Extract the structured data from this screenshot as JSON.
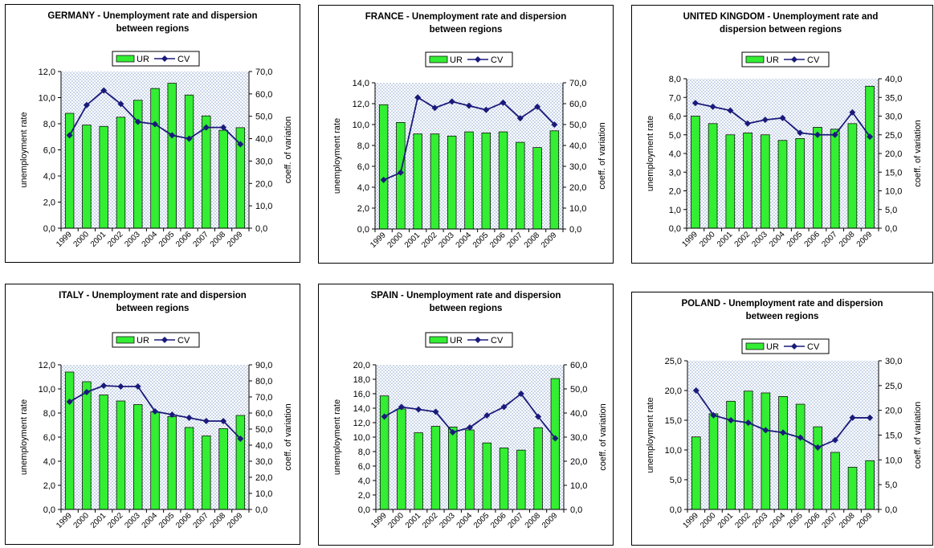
{
  "legend": {
    "bar_label": "UR",
    "line_label": "CV"
  },
  "colors": {
    "bar": "#33ee33",
    "bar_edge": "#111111",
    "line": "#1a1a7a",
    "plot_bg": "#dde6f2"
  },
  "chart_data": [
    {
      "type": "bar+line",
      "title_lines": [
        "GERMANY - Unemployment rate and dispersion",
        "between regions"
      ],
      "ylabel": "unemployment rate",
      "y2label": "coeff. of variation",
      "categories": [
        "1999",
        "2000",
        "2001",
        "2002",
        "2003",
        "2004",
        "2005",
        "2006",
        "2007",
        "2008",
        "2009"
      ],
      "series": [
        {
          "name": "UR",
          "axis": "left",
          "values": [
            8.8,
            7.9,
            7.8,
            8.5,
            9.8,
            10.7,
            11.1,
            10.2,
            8.6,
            7.5,
            7.7
          ]
        },
        {
          "name": "CV",
          "axis": "right",
          "values": [
            41.5,
            55.0,
            61.5,
            55.5,
            47.5,
            46.5,
            41.5,
            40.0,
            45.0,
            45.0,
            37.5
          ]
        }
      ],
      "ylim": [
        0,
        12
      ],
      "yticks": [
        "0,0",
        "2,0",
        "4,0",
        "6,0",
        "8,0",
        "10,0",
        "12,0"
      ],
      "y2lim": [
        0,
        70
      ],
      "y2ticks": [
        "0,0",
        "10,0",
        "20,0",
        "30,0",
        "40,0",
        "50,0",
        "60,0",
        "70,0"
      ]
    },
    {
      "type": "bar+line",
      "title_lines": [
        "FRANCE - Unemployment rate and dispersion",
        "between regions"
      ],
      "ylabel": "unemployment rate",
      "y2label": "coeff. of variation",
      "categories": [
        "1999",
        "2000",
        "2001",
        "2002",
        "2003",
        "2004",
        "2005",
        "2006",
        "2007",
        "2008",
        "2009"
      ],
      "series": [
        {
          "name": "UR",
          "axis": "left",
          "values": [
            11.9,
            10.2,
            9.1,
            9.1,
            8.9,
            9.3,
            9.2,
            9.3,
            8.3,
            7.8,
            9.4
          ]
        },
        {
          "name": "CV",
          "axis": "right",
          "values": [
            23.5,
            27.0,
            63.0,
            58.0,
            61.0,
            59.0,
            57.0,
            60.5,
            53.0,
            58.5,
            50.0
          ]
        }
      ],
      "ylim": [
        0,
        14
      ],
      "yticks": [
        "0,0",
        "2,0",
        "4,0",
        "6,0",
        "8,0",
        "10,0",
        "12,0",
        "14,0"
      ],
      "y2lim": [
        0,
        70
      ],
      "y2ticks": [
        "0,0",
        "10,0",
        "20,0",
        "30,0",
        "40,0",
        "50,0",
        "60,0",
        "70,0"
      ]
    },
    {
      "type": "bar+line",
      "title_lines": [
        "UNITED KINGDOM - Unemployment rate and",
        "dispersion between regions"
      ],
      "ylabel": "unemployment rate",
      "y2label": "coeff. of variation",
      "categories": [
        "1999",
        "2000",
        "2001",
        "2002",
        "2003",
        "2004",
        "2005",
        "2006",
        "2007",
        "2008",
        "2009"
      ],
      "series": [
        {
          "name": "UR",
          "axis": "left",
          "values": [
            6.0,
            5.6,
            5.0,
            5.1,
            5.0,
            4.7,
            4.8,
            5.4,
            5.3,
            5.6,
            7.6
          ]
        },
        {
          "name": "CV",
          "axis": "right",
          "values": [
            33.5,
            32.5,
            31.5,
            28.0,
            29.0,
            29.5,
            25.5,
            25.0,
            25.0,
            31.0,
            24.5
          ]
        }
      ],
      "ylim": [
        0,
        8
      ],
      "yticks": [
        "0,0",
        "1,0",
        "2,0",
        "3,0",
        "4,0",
        "5,0",
        "6,0",
        "7,0",
        "8,0"
      ],
      "y2lim": [
        0,
        40
      ],
      "y2ticks": [
        "0,0",
        "5,0",
        "10,0",
        "15,0",
        "20,0",
        "25,0",
        "30,0",
        "35,0",
        "40,0"
      ]
    },
    {
      "type": "bar+line",
      "title_lines": [
        "ITALY - Unemployment rate and dispersion",
        "between regions"
      ],
      "ylabel": "unemployment rate",
      "y2label": "coeff. of variation",
      "categories": [
        "1999",
        "2000",
        "2001",
        "2002",
        "2003",
        "2004",
        "2005",
        "2006",
        "2007",
        "2008",
        "2009"
      ],
      "series": [
        {
          "name": "UR",
          "axis": "left",
          "values": [
            11.4,
            10.6,
            9.5,
            9.0,
            8.7,
            8.1,
            7.7,
            6.8,
            6.1,
            6.7,
            7.8
          ]
        },
        {
          "name": "CV",
          "axis": "right",
          "values": [
            67.0,
            73.0,
            77.0,
            76.5,
            76.5,
            61.0,
            59.0,
            57.0,
            55.0,
            55.0,
            44.0
          ]
        }
      ],
      "ylim": [
        0,
        12
      ],
      "yticks": [
        "0,0",
        "2,0",
        "4,0",
        "6,0",
        "8,0",
        "10,0",
        "12,0"
      ],
      "y2lim": [
        0,
        90
      ],
      "y2ticks": [
        "0,0",
        "10,0",
        "20,0",
        "30,0",
        "40,0",
        "50,0",
        "60,0",
        "70,0",
        "80,0",
        "90,0"
      ]
    },
    {
      "type": "bar+line",
      "title_lines": [
        "SPAIN - Unemployment rate and dispersion",
        "between regions"
      ],
      "ylabel": "unemployment rate",
      "y2label": "coeff. of variation",
      "categories": [
        "1999",
        "2000",
        "2001",
        "2002",
        "2003",
        "2004",
        "2005",
        "2006",
        "2007",
        "2008",
        "2009"
      ],
      "series": [
        {
          "name": "UR",
          "axis": "left",
          "values": [
            15.7,
            13.9,
            10.6,
            11.5,
            11.4,
            11.0,
            9.2,
            8.5,
            8.2,
            11.3,
            18.1
          ]
        },
        {
          "name": "CV",
          "axis": "right",
          "values": [
            38.5,
            42.5,
            41.5,
            40.5,
            32.0,
            34.0,
            39.0,
            42.5,
            48.0,
            38.5,
            29.5
          ]
        }
      ],
      "ylim": [
        0,
        20
      ],
      "yticks": [
        "0,0",
        "2,0",
        "4,0",
        "6,0",
        "8,0",
        "10,0",
        "12,0",
        "14,0",
        "16,0",
        "18,0",
        "20,0"
      ],
      "y2lim": [
        0,
        60
      ],
      "y2ticks": [
        "0,0",
        "10,0",
        "20,0",
        "30,0",
        "40,0",
        "50,0",
        "60,0"
      ]
    },
    {
      "type": "bar+line",
      "title_lines": [
        "POLAND - Unemployment rate and dispersion",
        "between regions"
      ],
      "ylabel": "unemployment rate",
      "y2label": "coeff. of variation",
      "categories": [
        "1999",
        "2000",
        "2001",
        "2002",
        "2003",
        "2004",
        "2005",
        "2006",
        "2007",
        "2008",
        "2009"
      ],
      "series": [
        {
          "name": "UR",
          "axis": "left",
          "values": [
            12.2,
            16.1,
            18.2,
            19.9,
            19.6,
            19.0,
            17.7,
            13.9,
            9.6,
            7.1,
            8.2
          ]
        },
        {
          "name": "CV",
          "axis": "right",
          "values": [
            24.0,
            19.0,
            18.0,
            17.5,
            16.0,
            15.5,
            14.5,
            12.5,
            14.0,
            18.5,
            18.5
          ]
        }
      ],
      "ylim": [
        0,
        25
      ],
      "yticks": [
        "0,0",
        "5,0",
        "10,0",
        "15,0",
        "20,0",
        "25,0"
      ],
      "y2lim": [
        0,
        30
      ],
      "y2ticks": [
        "0,0",
        "5,0",
        "10,0",
        "15,0",
        "20,0",
        "25,0",
        "30,0"
      ]
    }
  ]
}
